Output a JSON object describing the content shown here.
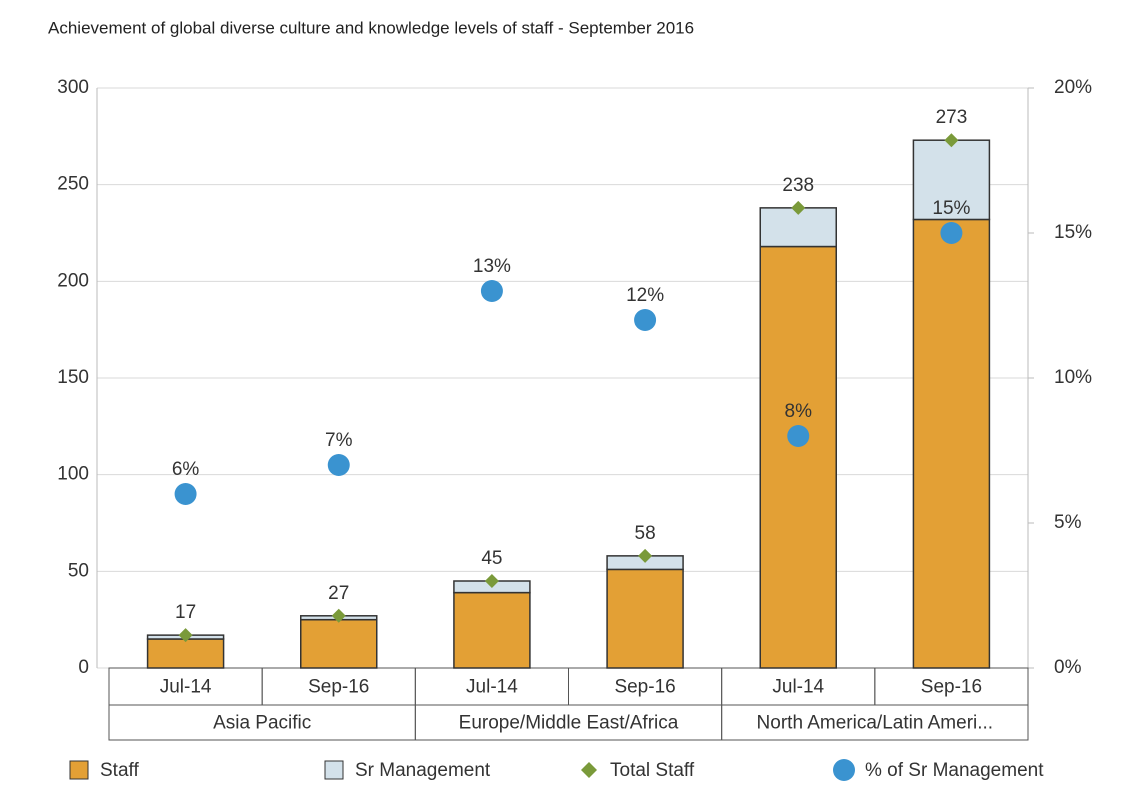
{
  "chart_data": {
    "type": "bar",
    "title": "Achievement of global diverse culture and knowledge levels of staff - September 2016",
    "categories": [
      "Jul-14",
      "Sep-16",
      "Jul-14",
      "Sep-16",
      "Jul-14",
      "Sep-16"
    ],
    "group_labels": [
      "Asia Pacific",
      "Europe/Middle East/Africa",
      "North America/Latin Ameri..."
    ],
    "series": [
      {
        "name": "Staff",
        "type": "bar",
        "color": "#e3a035",
        "values": [
          15,
          25,
          39,
          51,
          218,
          232
        ]
      },
      {
        "name": "Sr Management",
        "type": "bar",
        "color": "#d3e1ea",
        "values": [
          2,
          2,
          6,
          7,
          20,
          41
        ]
      },
      {
        "name": "Total Staff",
        "type": "scatter",
        "marker": "diamond",
        "color": "#7a9a3a",
        "values": [
          17,
          27,
          45,
          58,
          238,
          273
        ]
      },
      {
        "name": "% of Sr Management",
        "type": "scatter",
        "marker": "circle",
        "color": "#3a93d0",
        "axis": "y2",
        "values": [
          6,
          7,
          13,
          12,
          8,
          15
        ],
        "value_labels": [
          "6%",
          "7%",
          "13%",
          "12%",
          "8%",
          "15%"
        ]
      }
    ],
    "ylim": [
      0,
      300
    ],
    "yticks": [
      0,
      50,
      100,
      150,
      200,
      250,
      300
    ],
    "y2lim": [
      0,
      20
    ],
    "y2ticks": [
      {
        "value": 0,
        "label": "0%"
      },
      {
        "value": 5,
        "label": "5%"
      },
      {
        "value": 10,
        "label": "10%"
      },
      {
        "value": 15,
        "label": "15%"
      },
      {
        "value": 20,
        "label": "20%"
      }
    ],
    "grid": true,
    "legend": "bottom"
  }
}
